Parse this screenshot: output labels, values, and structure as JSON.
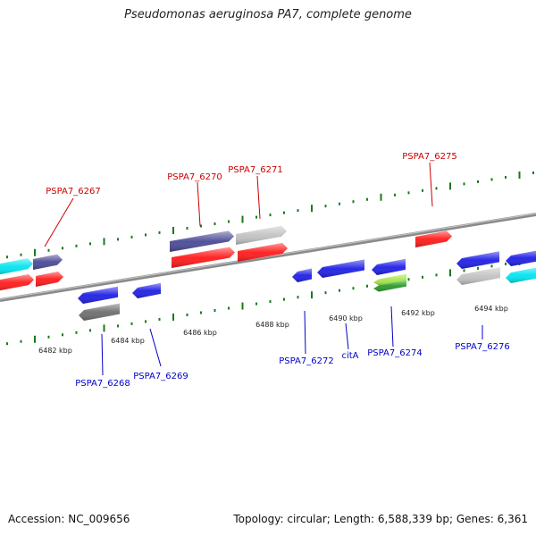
{
  "title": "Pseudomonas aeruginosa PA7, complete genome",
  "footer": {
    "accession": "Accession: NC_009656",
    "summary": "Topology: circular; Length: 6,588,339 bp; Genes: 6,361"
  },
  "colors": {
    "forward_label": "#cc0000",
    "reverse_label": "#0000cc",
    "tick": "#1a7a1a",
    "backbone": "#8a8a8a",
    "red": "#ff1a1a",
    "blue": "#1f1fe6",
    "navy": "#4a4a96",
    "gray": "#c2c2c2",
    "darkgray": "#6e6e6e",
    "cyan": "#00e5f0",
    "green": "#2a9a2a",
    "lime": "#a8e84a"
  },
  "ruler_labels": [
    {
      "text": "6482 kbp"
    },
    {
      "text": "6484 kbp"
    },
    {
      "text": "6486 kbp"
    },
    {
      "text": "6488 kbp"
    },
    {
      "text": "6490 kbp"
    },
    {
      "text": "6492 kbp"
    },
    {
      "text": "6494 kbp"
    }
  ],
  "gene_labels": [
    {
      "text": "PSPA7_6267",
      "strand": "forward"
    },
    {
      "text": "PSPA7_6270",
      "strand": "forward"
    },
    {
      "text": "PSPA7_6271",
      "strand": "forward"
    },
    {
      "text": "PSPA7_6275",
      "strand": "forward"
    },
    {
      "text": "PSPA7_6268",
      "strand": "reverse"
    },
    {
      "text": "PSPA7_6269",
      "strand": "reverse"
    },
    {
      "text": "PSPA7_6272",
      "strand": "reverse"
    },
    {
      "text": "citA",
      "strand": "reverse"
    },
    {
      "text": "PSPA7_6274",
      "strand": "reverse"
    },
    {
      "text": "PSPA7_6276",
      "strand": "reverse"
    }
  ],
  "genes": [
    {
      "color": "cyan",
      "strand": "forward"
    },
    {
      "color": "navy",
      "strand": "forward"
    },
    {
      "color": "red",
      "strand": "forward"
    },
    {
      "color": "red",
      "strand": "forward"
    },
    {
      "color": "navy",
      "strand": "forward"
    },
    {
      "color": "gray",
      "strand": "forward"
    },
    {
      "color": "red",
      "strand": "forward"
    },
    {
      "color": "red",
      "strand": "forward"
    },
    {
      "color": "red",
      "strand": "forward"
    },
    {
      "color": "blue",
      "strand": "reverse"
    },
    {
      "color": "darkgray",
      "strand": "reverse"
    },
    {
      "color": "blue",
      "strand": "reverse"
    },
    {
      "color": "blue",
      "strand": "reverse"
    },
    {
      "color": "blue",
      "strand": "reverse"
    },
    {
      "color": "blue",
      "strand": "reverse"
    },
    {
      "color": "lime",
      "strand": "reverse"
    },
    {
      "color": "green",
      "strand": "reverse"
    },
    {
      "color": "blue",
      "strand": "reverse"
    },
    {
      "color": "gray",
      "strand": "reverse"
    },
    {
      "color": "blue",
      "strand": "reverse"
    },
    {
      "color": "cyan",
      "strand": "reverse"
    }
  ]
}
